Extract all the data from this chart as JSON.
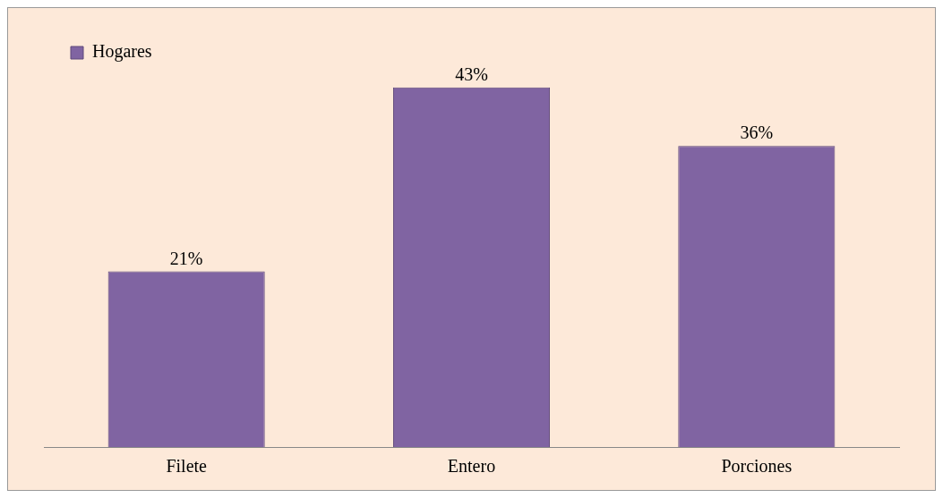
{
  "chart_data": {
    "type": "bar",
    "categories": [
      "Filete",
      "Entero",
      "Porciones"
    ],
    "series": [
      {
        "name": "Hogares",
        "color": "#8064a2",
        "values": [
          21,
          43,
          36
        ],
        "value_labels": [
          "21%",
          "43%",
          "36%"
        ]
      }
    ],
    "legend": "top",
    "grid": false,
    "tick_labels": "x"
  }
}
